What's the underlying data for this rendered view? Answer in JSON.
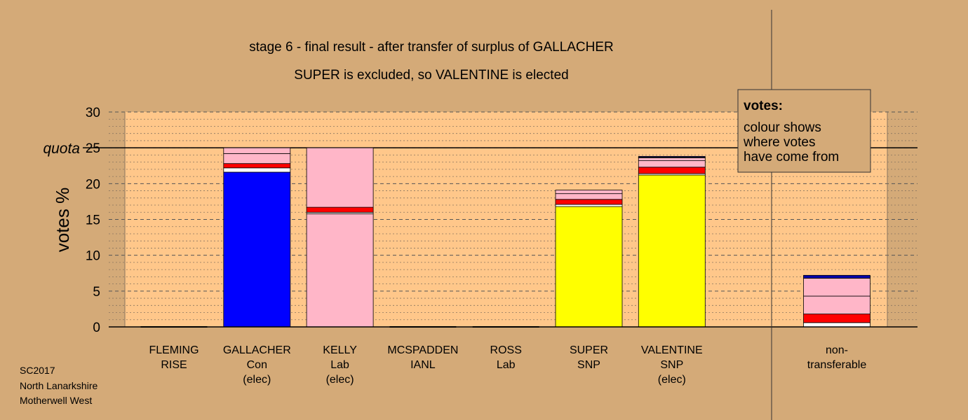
{
  "chart_data": {
    "type": "bar",
    "stacked": true,
    "title": "stage 6 - final result - after transfer of surplus of GALLACHER",
    "subtitle": "SUPER is excluded, so VALENTINE is elected",
    "ylabel": "votes %",
    "ylim": [
      0,
      30
    ],
    "yticks": [
      "0",
      "5",
      "10",
      "15",
      "20",
      "25",
      "30"
    ],
    "quota": {
      "label": "quota",
      "value": 25
    },
    "grid": true,
    "categories": [
      {
        "lines": [
          "FLEMING",
          "RISE"
        ]
      },
      {
        "lines": [
          "GALLACHER",
          "Con",
          "(elec)"
        ]
      },
      {
        "lines": [
          "KELLY",
          "Lab",
          "(elec)"
        ]
      },
      {
        "lines": [
          "MCSPADDEN",
          "IANL"
        ]
      },
      {
        "lines": [
          "ROSS",
          "Lab"
        ]
      },
      {
        "lines": [
          "SUPER",
          "SNP"
        ]
      },
      {
        "lines": [
          "VALENTINE",
          "SNP",
          "(elec)"
        ]
      }
    ],
    "nontransferable": {
      "lines": [
        "non-",
        "transferable"
      ]
    },
    "bars": [
      {
        "segments": []
      },
      {
        "segments": [
          {
            "color": "#0000ff",
            "value": 21.6
          },
          {
            "color": "#ffffff",
            "value": 0.6
          },
          {
            "color": "#ff0000",
            "value": 0.6
          },
          {
            "color": "#ffb6c8",
            "value": 1.4
          },
          {
            "color": "#ffb6c8",
            "value": 0.8
          }
        ]
      },
      {
        "segments": [
          {
            "color": "#ffb6c8",
            "value": 15.8
          },
          {
            "color": "#ffffff",
            "value": 0.2
          },
          {
            "color": "#ff0000",
            "value": 0.7
          },
          {
            "color": "#ffb6c8",
            "value": 8.3
          }
        ]
      },
      {
        "segments": []
      },
      {
        "segments": []
      },
      {
        "segments": [
          {
            "color": "#ffff00",
            "value": 16.8
          },
          {
            "color": "#ffffff",
            "value": 0.3
          },
          {
            "color": "#ff0000",
            "value": 0.7
          },
          {
            "color": "#ffb6c8",
            "value": 0.8
          },
          {
            "color": "#ffb6c8",
            "value": 0.5
          }
        ]
      },
      {
        "segments": [
          {
            "color": "#ffff00",
            "value": 21.2
          },
          {
            "color": "#ffffff",
            "value": 0.2
          },
          {
            "color": "#ff0000",
            "value": 0.9
          },
          {
            "color": "#ffb6c8",
            "value": 0.9
          },
          {
            "color": "#ffb6c8",
            "value": 0.4
          },
          {
            "color": "#ffffff",
            "value": 0.1
          },
          {
            "color": "#0000ff",
            "value": 0.1
          }
        ]
      }
    ],
    "nontransferable_bar": {
      "segments": [
        {
          "color": "#ffffff",
          "value": 0.6
        },
        {
          "color": "#ff0000",
          "value": 1.2
        },
        {
          "color": "#ffb6c8",
          "value": 2.5
        },
        {
          "color": "#ffb6c8",
          "value": 2.5
        },
        {
          "color": "#0000aa",
          "value": 0.4
        }
      ]
    },
    "legend": {
      "title": "votes:",
      "lines": [
        "colour shows",
        "where votes",
        "have come from"
      ],
      "position": "top-right"
    },
    "footnote": [
      "SC2017",
      "North Lanarkshire",
      "Motherwell West"
    ]
  }
}
